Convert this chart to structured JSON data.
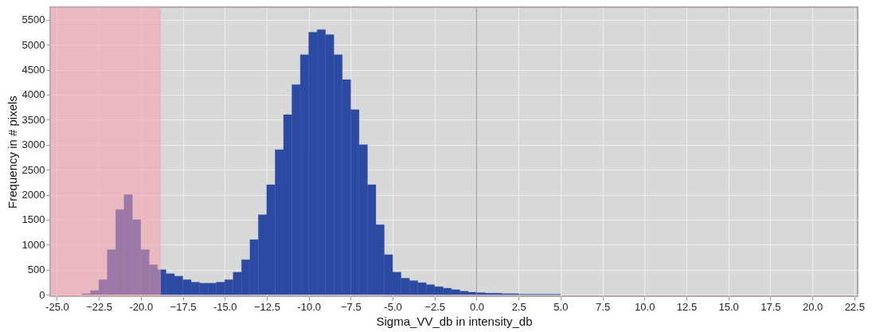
{
  "chart_data": {
    "type": "histogram",
    "xlabel": "Sigma_VV_db in intensity_db",
    "ylabel": "Frequency in # pixels",
    "bins": [
      -23.5,
      -23.0,
      -22.5,
      -22.0,
      -21.5,
      -21.0,
      -20.5,
      -20.0,
      -19.5,
      -19.0,
      -18.5,
      -18.0,
      -17.5,
      -17.0,
      -16.5,
      -16.0,
      -15.5,
      -15.0,
      -14.5,
      -14.0,
      -13.5,
      -13.0,
      -12.5,
      -12.0,
      -11.5,
      -11.0,
      -10.5,
      -10.0,
      -9.5,
      -9.0,
      -8.5,
      -8.0,
      -7.5,
      -7.0,
      -6.5,
      -6.0,
      -5.5,
      -5.0,
      -4.5,
      -4.0,
      -3.5,
      -3.0,
      -2.5,
      -2.0,
      -1.5,
      -1.0,
      -0.5,
      0.0,
      0.5,
      1.0,
      1.5,
      2.0,
      2.5,
      3.0,
      3.5,
      4.0,
      4.5,
      5.0
    ],
    "values": [
      20,
      80,
      300,
      900,
      1700,
      2000,
      1500,
      900,
      600,
      500,
      420,
      370,
      300,
      250,
      230,
      230,
      250,
      300,
      450,
      700,
      1100,
      1600,
      2200,
      2900,
      3600,
      4200,
      4800,
      5250,
      5300,
      5200,
      4800,
      4300,
      3700,
      3000,
      2200,
      1400,
      800,
      450,
      330,
      280,
      240,
      200,
      160,
      130,
      100,
      70,
      50,
      40,
      30,
      30,
      20,
      20,
      10,
      10,
      10,
      10,
      10
    ],
    "color": "#2b4ba3",
    "xlim": [
      -25.4,
      22.7
    ],
    "ylim": [
      -30,
      5750
    ],
    "xticks": [
      {
        "value": -25,
        "label": "-25.0"
      },
      -22.5,
      {
        "value": -20,
        "label": "-20.0"
      },
      -17.5,
      {
        "value": -15,
        "label": "-15.0"
      },
      -12.5,
      {
        "value": -10,
        "label": "-10.0"
      },
      -7.5,
      {
        "value": -5,
        "label": "-5.0"
      },
      -2.5,
      {
        "value": 0,
        "label": "0.0"
      },
      2.5,
      {
        "value": 5,
        "label": "5.0"
      },
      7.5,
      {
        "value": 10,
        "label": "10.0"
      },
      12.5,
      {
        "value": 15,
        "label": "15.0"
      },
      17.5,
      {
        "value": 20,
        "label": "20.0"
      },
      22.5
    ],
    "yticks": [
      0,
      500,
      1000,
      1500,
      2000,
      2500,
      3000,
      3500,
      4000,
      4500,
      5000,
      5500
    ],
    "bands": [
      {
        "axis": "x",
        "from": -25.4,
        "to": -18.8,
        "color": "#f7a1ab"
      }
    ],
    "ref_lines": [
      {
        "axis": "x",
        "value": 0,
        "color": "#9a9a9a"
      }
    ],
    "grid": true
  }
}
